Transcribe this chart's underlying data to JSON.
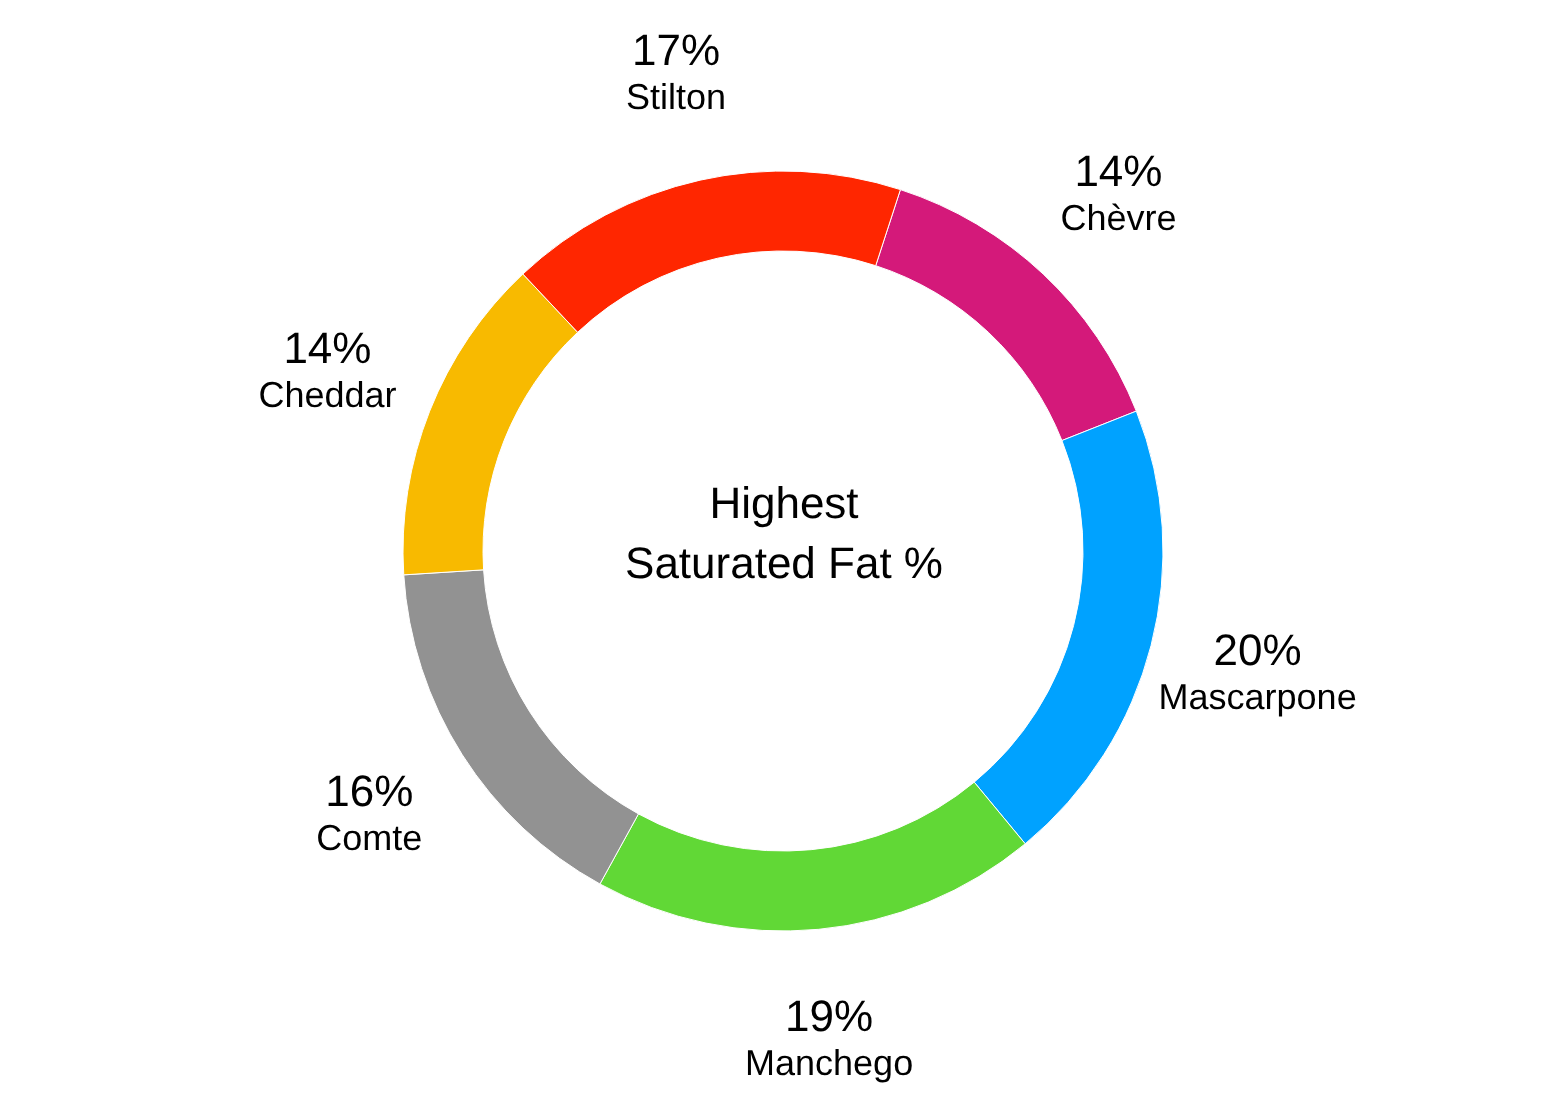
{
  "chart_data": {
    "type": "donut",
    "title": "Highest\nSaturated Fat %",
    "categories": [
      "Chèvre",
      "Mascarpone",
      "Manchego",
      "Comte",
      "Cheddar",
      "Stilton"
    ],
    "values": [
      14,
      20,
      19,
      16,
      14,
      17
    ],
    "value_labels": [
      "14%",
      "20%",
      "19%",
      "16%",
      "14%",
      "17%"
    ],
    "colors": [
      "#d4197a",
      "#00a2ff",
      "#61d836",
      "#929292",
      "#f8ba00",
      "#ff2600"
    ]
  }
}
